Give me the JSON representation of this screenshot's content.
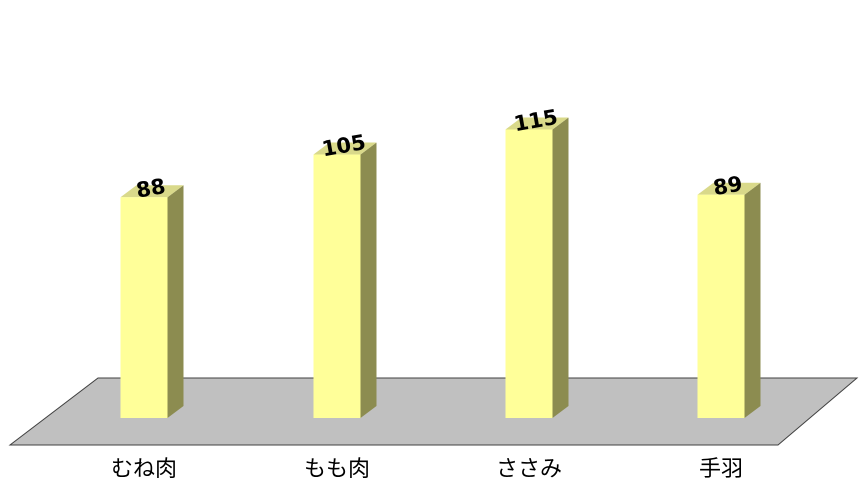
{
  "chart_data": {
    "type": "bar",
    "categories": [
      "むね肉",
      "もも肉",
      "ささみ",
      "手羽"
    ],
    "values": [
      88,
      105,
      115,
      89
    ],
    "title": "",
    "xlabel": "",
    "ylabel": "",
    "ylim": [
      0,
      130
    ],
    "grid": false,
    "legend": "none",
    "three_d": true,
    "colors": {
      "bar_front": "#FFFF99",
      "bar_top": "#D9D98A",
      "bar_side": "#8C8C50",
      "floor": "#C0C0C0",
      "edge": "#404040"
    }
  }
}
